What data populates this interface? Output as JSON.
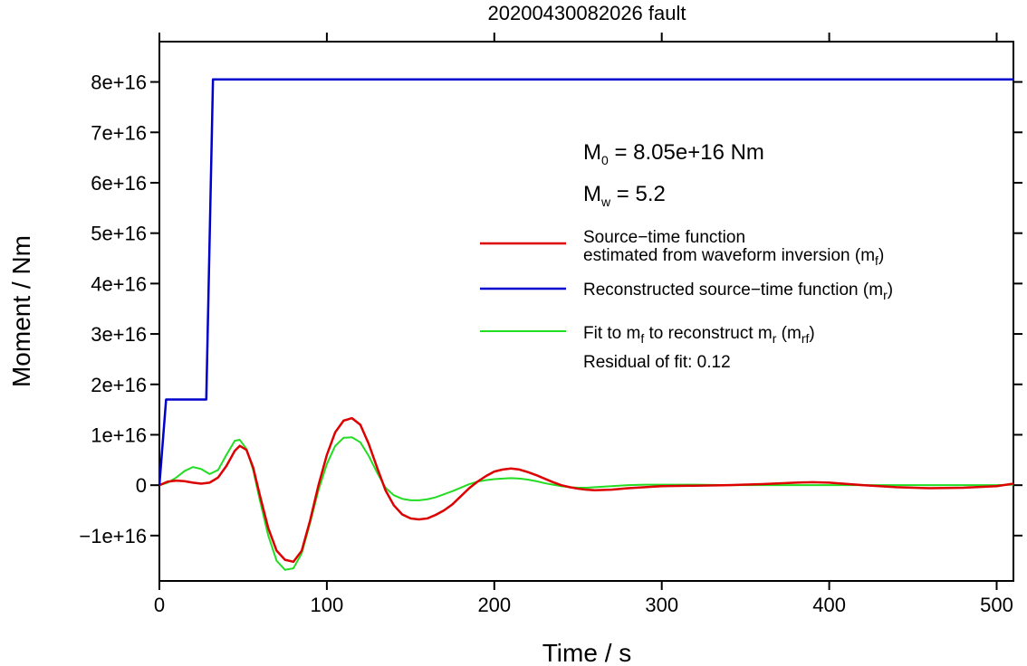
{
  "chart_data": {
    "type": "line",
    "title": "20200430082026 fault",
    "xlabel": "Time / s",
    "ylabel": "Moment / Nm",
    "xlim": [
      0,
      510
    ],
    "ylim": [
      -1.9e+16,
      8.8e+16
    ],
    "x_ticks": [
      0,
      100,
      200,
      300,
      400,
      500
    ],
    "x_tick_labels": [
      "0",
      "100",
      "200",
      "300",
      "400",
      "500"
    ],
    "y_ticks": [
      -1e+16,
      0,
      1e+16,
      2e+16,
      3e+16,
      4e+16,
      5e+16,
      6e+16,
      7e+16,
      8e+16
    ],
    "y_tick_labels": [
      "−1e+16",
      "0",
      "1e+16",
      "2e+16",
      "3e+16",
      "4e+16",
      "5e+16",
      "6e+16",
      "7e+16",
      "8e+16"
    ],
    "grid": false,
    "legend_position": "right",
    "annotations": {
      "m0": {
        "main": "M",
        "sub": "0",
        "rest": " = 8.05e+16 Nm"
      },
      "mw": {
        "main": "M",
        "sub": "w",
        "rest": " = 5.2"
      },
      "residual": "Residual of fit: 0.12"
    },
    "legend": [
      {
        "color": "#dd0000",
        "lines": [
          "Source−time function",
          "estimated from waveform inversion (m"
        ],
        "sub": "f",
        "tail": ")"
      },
      {
        "color": "#0000cc",
        "lines": [
          "Reconstructed source−time function (m"
        ],
        "sub": "r",
        "tail": ")"
      },
      {
        "color": "#22dd22",
        "lines": [
          "Fit to m"
        ],
        "sub": "f",
        "mid": " to reconstruct m",
        "sub2": "r",
        "mid2": " (m",
        "sub3": "rf",
        "tail": ")"
      }
    ],
    "series": [
      {
        "name": "Source−time function estimated from waveform inversion (m_f)",
        "color": "#dd0000",
        "x": [
          0,
          5,
          10,
          15,
          20,
          25,
          30,
          35,
          40,
          45,
          48,
          52,
          56,
          60,
          65,
          70,
          75,
          80,
          85,
          90,
          95,
          100,
          105,
          110,
          115,
          120,
          125,
          130,
          135,
          140,
          145,
          150,
          155,
          160,
          165,
          170,
          175,
          180,
          185,
          190,
          195,
          200,
          205,
          210,
          215,
          220,
          225,
          230,
          235,
          240,
          245,
          250,
          255,
          260,
          270,
          280,
          290,
          300,
          320,
          340,
          360,
          380,
          390,
          400,
          420,
          440,
          460,
          480,
          500,
          510
        ],
        "y": [
          0,
          700000000000000.0,
          900000000000000.0,
          800000000000000.0,
          500000000000000.0,
          300000000000000.0,
          500000000000000.0,
          1500000000000000.0,
          3800000000000000.0,
          6800000000000000.0,
          7800000000000000.0,
          7000000000000000.0,
          3500000000000000.0,
          -2000000000000000.0,
          -8500000000000000.0,
          -1.3e+16,
          -1.48e+16,
          -1.52e+16,
          -1.3e+16,
          -7000000000000000.0,
          0.0,
          6000000000000000.0,
          1.05e+16,
          1.28e+16,
          1.33e+16,
          1.2e+16,
          8200000000000000.0,
          3500000000000000.0,
          -1000000000000000.0,
          -4000000000000000.0,
          -5800000000000000.0,
          -6600000000000000.0,
          -6800000000000000.0,
          -6600000000000000.0,
          -5900000000000000.0,
          -5000000000000000.0,
          -3800000000000000.0,
          -2200000000000000.0,
          -600000000000000.0,
          700000000000000.0,
          1800000000000000.0,
          2700000000000000.0,
          3100000000000000.0,
          3300000000000000.0,
          3100000000000000.0,
          2600000000000000.0,
          2000000000000000.0,
          1300000000000000.0,
          600000000000000.0,
          0.0,
          -400000000000000.0,
          -700000000000000.0,
          -900000000000000.0,
          -1000000000000000.0,
          -900000000000000.0,
          -600000000000000.0,
          -400000000000000.0,
          -200000000000000.0,
          -100000000000000.0,
          0.0,
          200000000000000.0,
          500000000000000.0,
          600000000000000.0,
          500000000000000.0,
          0.0,
          -400000000000000.0,
          -600000000000000.0,
          -500000000000000.0,
          -200000000000000.0,
          300000000000000.0
        ]
      },
      {
        "name": "Reconstructed source−time function (m_r)",
        "color": "#0000cc",
        "x": [
          0,
          4,
          28,
          32,
          510
        ],
        "y": [
          0,
          1.7e+16,
          1.7e+16,
          8.05e+16,
          8.05e+16
        ]
      },
      {
        "name": "Fit to m_f to reconstruct m_r (m_rf)",
        "color": "#22dd22",
        "x": [
          0,
          5,
          10,
          15,
          20,
          25,
          30,
          35,
          40,
          45,
          48,
          52,
          56,
          60,
          65,
          70,
          75,
          80,
          85,
          90,
          95,
          100,
          105,
          110,
          115,
          120,
          125,
          130,
          135,
          140,
          145,
          150,
          155,
          160,
          165,
          170,
          175,
          180,
          185,
          190,
          195,
          200,
          205,
          210,
          215,
          220,
          225,
          230,
          235,
          240,
          245,
          250,
          255,
          260,
          270,
          280,
          290,
          300,
          320,
          340,
          360,
          380,
          400,
          420,
          440,
          460,
          480,
          500,
          510
        ],
        "y": [
          0,
          500000000000000.0,
          1500000000000000.0,
          2800000000000000.0,
          3600000000000000.0,
          3200000000000000.0,
          2200000000000000.0,
          3000000000000000.0,
          6000000000000000.0,
          8800000000000000.0,
          9000000000000000.0,
          7200000000000000.0,
          3000000000000000.0,
          -3000000000000000.0,
          -1e+16,
          -1.5e+16,
          -1.68e+16,
          -1.65e+16,
          -1.35e+16,
          -7500000000000000.0,
          -1000000000000000.0,
          4200000000000000.0,
          7800000000000000.0,
          9400000000000000.0,
          9500000000000000.0,
          8500000000000000.0,
          5800000000000000.0,
          2500000000000000.0,
          -500000000000000.0,
          -2000000000000000.0,
          -2700000000000000.0,
          -3000000000000000.0,
          -3000000000000000.0,
          -2800000000000000.0,
          -2400000000000000.0,
          -1800000000000000.0,
          -1200000000000000.0,
          -500000000000000.0,
          200000000000000.0,
          700000000000000.0,
          1000000000000000.0,
          1200000000000000.0,
          1300000000000000.0,
          1400000000000000.0,
          1300000000000000.0,
          1100000000000000.0,
          800000000000000.0,
          400000000000000.0,
          100000000000000.0,
          -200000000000000.0,
          -400000000000000.0,
          -500000000000000.0,
          -500000000000000.0,
          -400000000000000.0,
          -200000000000000.0,
          0.0,
          100000000000000.0,
          100000000000000.0,
          100000000000000.0,
          0.0,
          0.0,
          0.0,
          0.0,
          0.0,
          0.0,
          0.0,
          0.0,
          0.0,
          100000000000000.0
        ]
      }
    ]
  }
}
